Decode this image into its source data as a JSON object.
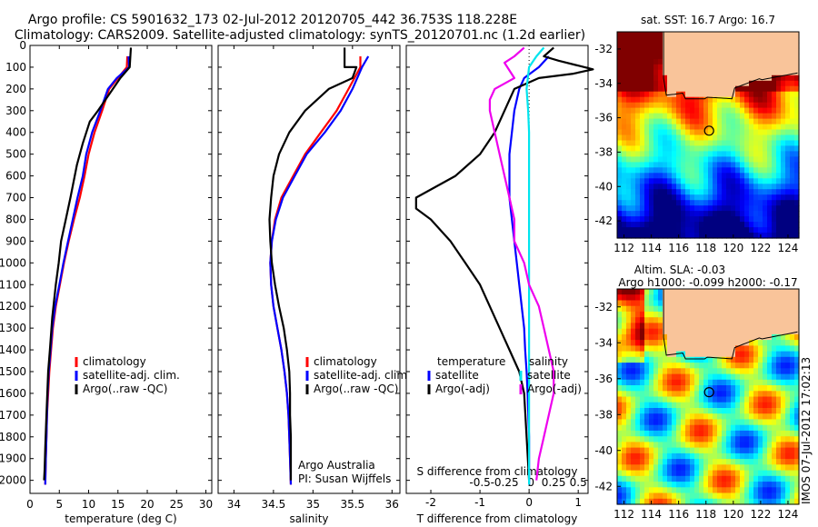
{
  "title": {
    "line1": "Argo profile: CS 5901632_173 02-Jul-2012 20120705_442 36.753S 118.228E",
    "line2": "Climatology: CARS2009. Satellite-adjusted climatology: synTS_20120701.nc (1.2d earlier)"
  },
  "colors": {
    "clim": "#ff0000",
    "sat": "#0000ff",
    "argo": "#000000",
    "sat_s": "#00e5ee",
    "argo_s": "#ee00ee",
    "land": "#f9c49a"
  },
  "chart_data": [
    {
      "id": "temperature",
      "type": "line",
      "xlabel": "temperature (deg C)",
      "ylabel": "",
      "xlim": [
        0,
        31
      ],
      "ylim": [
        2060,
        0
      ],
      "xticks": [
        0,
        5,
        10,
        15,
        20,
        25,
        30
      ],
      "yticks": [
        0,
        100,
        200,
        300,
        400,
        500,
        600,
        700,
        800,
        900,
        1000,
        1100,
        1200,
        1300,
        1400,
        1500,
        1600,
        1700,
        1800,
        1900,
        2000
      ],
      "legend": [
        "climatology",
        "satellite-adj. clim.",
        "Argo(..raw -QC)"
      ],
      "series": [
        {
          "name": "climatology",
          "color_key": "clim",
          "points": [
            [
              16.6,
              50
            ],
            [
              16.5,
              100
            ],
            [
              15.0,
              150
            ],
            [
              13.5,
              200
            ],
            [
              12.3,
              300
            ],
            [
              11.0,
              400
            ],
            [
              10.0,
              500
            ],
            [
              9.3,
              600
            ],
            [
              8.5,
              700
            ],
            [
              7.5,
              800
            ],
            [
              6.6,
              900
            ],
            [
              5.8,
              1000
            ],
            [
              5.1,
              1100
            ],
            [
              4.4,
              1200
            ],
            [
              3.9,
              1300
            ],
            [
              3.6,
              1400
            ],
            [
              3.3,
              1500
            ],
            [
              3.1,
              1600
            ],
            [
              2.9,
              1700
            ],
            [
              2.8,
              1800
            ],
            [
              2.7,
              1900
            ],
            [
              2.6,
              2020
            ]
          ]
        },
        {
          "name": "satellite-adj. clim.",
          "color_key": "sat",
          "points": [
            [
              16.8,
              50
            ],
            [
              16.9,
              100
            ],
            [
              14.8,
              150
            ],
            [
              13.3,
              200
            ],
            [
              12.0,
              300
            ],
            [
              10.6,
              400
            ],
            [
              9.6,
              500
            ],
            [
              9.0,
              600
            ],
            [
              8.1,
              700
            ],
            [
              7.3,
              800
            ],
            [
              6.5,
              900
            ],
            [
              5.7,
              1000
            ],
            [
              5.0,
              1100
            ],
            [
              4.3,
              1200
            ],
            [
              3.8,
              1300
            ],
            [
              3.5,
              1400
            ],
            [
              3.2,
              1500
            ],
            [
              3.0,
              1600
            ],
            [
              2.9,
              1700
            ],
            [
              2.8,
              1800
            ],
            [
              2.7,
              1900
            ],
            [
              2.6,
              2020
            ]
          ]
        },
        {
          "name": "Argo(..raw -QC)",
          "color_key": "argo",
          "points": [
            [
              17.2,
              10
            ],
            [
              17.0,
              100
            ],
            [
              15.4,
              150
            ],
            [
              11.6,
              300
            ],
            [
              10.2,
              350
            ],
            [
              9.0,
              450
            ],
            [
              8.0,
              550
            ],
            [
              6.9,
              700
            ],
            [
              6.1,
              800
            ],
            [
              5.3,
              900
            ],
            [
              4.9,
              1000
            ],
            [
              4.4,
              1100
            ],
            [
              3.8,
              1250
            ],
            [
              3.4,
              1400
            ],
            [
              3.1,
              1500
            ],
            [
              2.8,
              1700
            ],
            [
              2.6,
              1850
            ],
            [
              2.5,
              1950
            ],
            [
              2.4,
              2000
            ]
          ]
        }
      ]
    },
    {
      "id": "salinity",
      "type": "line",
      "xlabel": "salinity",
      "xlim": [
        33.8,
        36.1
      ],
      "ylim": [
        2060,
        0
      ],
      "xticks": [
        34,
        34.5,
        35,
        35.5,
        36
      ],
      "legend": [
        "climatology",
        "satellite-adj. clim.",
        "Argo(..raw -QC)"
      ],
      "annotation": [
        "Argo Australia",
        "PI: Susan Wijffels"
      ],
      "series": [
        {
          "name": "climatology",
          "color_key": "clim",
          "points": [
            [
              35.6,
              50
            ],
            [
              35.6,
              100
            ],
            [
              35.45,
              200
            ],
            [
              35.3,
              300
            ],
            [
              35.1,
              400
            ],
            [
              34.9,
              500
            ],
            [
              34.75,
              600
            ],
            [
              34.6,
              700
            ],
            [
              34.52,
              800
            ],
            [
              34.48,
              900
            ],
            [
              34.46,
              1000
            ],
            [
              34.47,
              1100
            ],
            [
              34.5,
              1200
            ],
            [
              34.55,
              1300
            ],
            [
              34.6,
              1400
            ],
            [
              34.64,
              1500
            ],
            [
              34.67,
              1600
            ],
            [
              34.69,
              1700
            ],
            [
              34.7,
              1800
            ],
            [
              34.71,
              1900
            ],
            [
              34.72,
              2020
            ]
          ]
        },
        {
          "name": "satellite-adj. clim.",
          "color_key": "sat",
          "points": [
            [
              35.7,
              50
            ],
            [
              35.62,
              100
            ],
            [
              35.5,
              200
            ],
            [
              35.35,
              300
            ],
            [
              35.15,
              400
            ],
            [
              34.92,
              500
            ],
            [
              34.77,
              600
            ],
            [
              34.62,
              700
            ],
            [
              34.53,
              800
            ],
            [
              34.48,
              900
            ],
            [
              34.46,
              1000
            ],
            [
              34.47,
              1100
            ],
            [
              34.5,
              1200
            ],
            [
              34.55,
              1300
            ],
            [
              34.6,
              1400
            ],
            [
              34.64,
              1500
            ],
            [
              34.67,
              1600
            ],
            [
              34.69,
              1700
            ],
            [
              34.7,
              1800
            ],
            [
              34.71,
              1900
            ],
            [
              34.72,
              2020
            ]
          ]
        },
        {
          "name": "Argo(..raw -QC)",
          "color_key": "argo",
          "points": [
            [
              35.4,
              10
            ],
            [
              35.4,
              100
            ],
            [
              35.55,
              100
            ],
            [
              35.5,
              150
            ],
            [
              35.2,
              200
            ],
            [
              34.9,
              300
            ],
            [
              34.7,
              400
            ],
            [
              34.57,
              500
            ],
            [
              34.5,
              600
            ],
            [
              34.47,
              700
            ],
            [
              34.45,
              800
            ],
            [
              34.46,
              900
            ],
            [
              34.48,
              1000
            ],
            [
              34.52,
              1100
            ],
            [
              34.57,
              1200
            ],
            [
              34.63,
              1300
            ],
            [
              34.67,
              1400
            ],
            [
              34.7,
              1500
            ],
            [
              34.71,
              1600
            ],
            [
              34.71,
              1700
            ],
            [
              34.72,
              1800
            ],
            [
              34.72,
              1900
            ],
            [
              34.72,
              2000
            ]
          ]
        }
      ]
    },
    {
      "id": "difference",
      "type": "line",
      "xlabel": "T difference from climatology",
      "xlabel_top": "S difference from climatology",
      "xlim": [
        -2.5,
        1.2
      ],
      "ylim": [
        2060,
        0
      ],
      "xticks": [
        -2,
        -1,
        0,
        1
      ],
      "s_ticks": [
        {
          "label": "-0.5",
          "t": -2
        },
        {
          "label": "-0.25",
          "t": -1
        },
        {
          "label": "0",
          "t": 0
        },
        {
          "label": "0.25",
          "t": 1
        },
        {
          "label": "0.5",
          "t": 2
        }
      ],
      "legend_t_title": "temperature",
      "legend_s_title": "salinity",
      "legend": [
        "satellite",
        "Argo(-adj)",
        "satellite",
        "Argo(-adj)"
      ],
      "series": [
        {
          "name": "satellite",
          "group": "temperature",
          "color_key": "sat",
          "points": [
            [
              0.4,
              50
            ],
            [
              0.2,
              100
            ],
            [
              -0.1,
              150
            ],
            [
              -0.2,
              200
            ],
            [
              -0.3,
              300
            ],
            [
              -0.35,
              400
            ],
            [
              -0.4,
              500
            ],
            [
              -0.4,
              600
            ],
            [
              -0.4,
              700
            ],
            [
              -0.35,
              800
            ],
            [
              -0.3,
              900
            ],
            [
              -0.25,
              1000
            ],
            [
              -0.2,
              1100
            ],
            [
              -0.15,
              1200
            ],
            [
              -0.1,
              1300
            ],
            [
              -0.08,
              1400
            ],
            [
              -0.05,
              1500
            ],
            [
              -0.03,
              1600
            ],
            [
              0.0,
              1800
            ],
            [
              0.0,
              2020
            ]
          ]
        },
        {
          "name": "Argo(-adj)",
          "group": "temperature",
          "color_key": "argo",
          "points": [
            [
              0.5,
              10
            ],
            [
              0.3,
              50
            ],
            [
              0.6,
              70
            ],
            [
              1.3,
              110
            ],
            [
              0.9,
              130
            ],
            [
              0.2,
              150
            ],
            [
              -0.3,
              200
            ],
            [
              -0.5,
              300
            ],
            [
              -0.7,
              400
            ],
            [
              -1.0,
              500
            ],
            [
              -1.5,
              600
            ],
            [
              -2.3,
              700
            ],
            [
              -2.3,
              750
            ],
            [
              -2.0,
              800
            ],
            [
              -1.6,
              900
            ],
            [
              -1.3,
              1000
            ],
            [
              -1.0,
              1100
            ],
            [
              -0.8,
              1200
            ],
            [
              -0.6,
              1300
            ],
            [
              -0.4,
              1400
            ],
            [
              -0.2,
              1500
            ],
            [
              -0.1,
              1600
            ],
            [
              -0.05,
              1800
            ],
            [
              0.0,
              2000
            ]
          ]
        },
        {
          "name": "satellite",
          "group": "salinity",
          "color_key": "sat_s",
          "points": [
            [
              0.3,
              10
            ],
            [
              0.15,
              50
            ],
            [
              0.0,
              100
            ],
            [
              -0.05,
              200
            ],
            [
              -0.02,
              300
            ],
            [
              0.0,
              400
            ],
            [
              0.0,
              500
            ],
            [
              0.0,
              600
            ],
            [
              0.0,
              700
            ],
            [
              0.0,
              800
            ],
            [
              0.0,
              1000
            ],
            [
              0.0,
              1200
            ],
            [
              0.0,
              1500
            ],
            [
              0.0,
              2020
            ]
          ]
        },
        {
          "name": "Argo(-adj)",
          "group": "salinity",
          "color_key": "argo_s",
          "points": [
            [
              -0.1,
              10
            ],
            [
              -0.3,
              50
            ],
            [
              -0.5,
              80
            ],
            [
              -0.3,
              150
            ],
            [
              -0.7,
              200
            ],
            [
              -0.8,
              250
            ],
            [
              -0.8,
              300
            ],
            [
              -0.7,
              400
            ],
            [
              -0.6,
              500
            ],
            [
              -0.5,
              600
            ],
            [
              -0.4,
              700
            ],
            [
              -0.3,
              800
            ],
            [
              -0.3,
              900
            ],
            [
              -0.1,
              1000
            ],
            [
              0.0,
              1100
            ],
            [
              0.2,
              1200
            ],
            [
              0.3,
              1300
            ],
            [
              0.4,
              1400
            ],
            [
              0.5,
              1500
            ],
            [
              0.5,
              1600
            ],
            [
              0.4,
              1700
            ],
            [
              0.3,
              1800
            ],
            [
              0.2,
              1900
            ],
            [
              0.15,
              2000
            ]
          ]
        }
      ]
    },
    {
      "id": "sst_map",
      "type": "heatmap",
      "title": "sat. SST: 16.7 Argo: 16.7",
      "xlim": [
        111.5,
        124.8
      ],
      "ylim": [
        -43,
        -31
      ],
      "xticks": [
        112,
        114,
        116,
        118,
        120,
        122,
        124
      ],
      "yticks": [
        -32,
        -34,
        -36,
        -38,
        -40,
        -42
      ],
      "argo_position": [
        118.228,
        -36.753
      ],
      "colormap": "jet"
    },
    {
      "id": "sla_map",
      "type": "heatmap",
      "title_line1": "Altim. SLA: -0.03",
      "title_line2": "Argo h1000: -0.099 h2000: -0.17",
      "xlim": [
        111.5,
        124.8
      ],
      "ylim": [
        -43,
        -31
      ],
      "xticks": [
        112,
        114,
        116,
        118,
        120,
        122,
        124
      ],
      "yticks": [
        -32,
        -34,
        -36,
        -38,
        -40,
        -42
      ],
      "argo_position": [
        118.228,
        -36.753
      ],
      "colormap": "jet"
    }
  ],
  "stamp": "IMOS 07-Jul-2012 17:02:13"
}
